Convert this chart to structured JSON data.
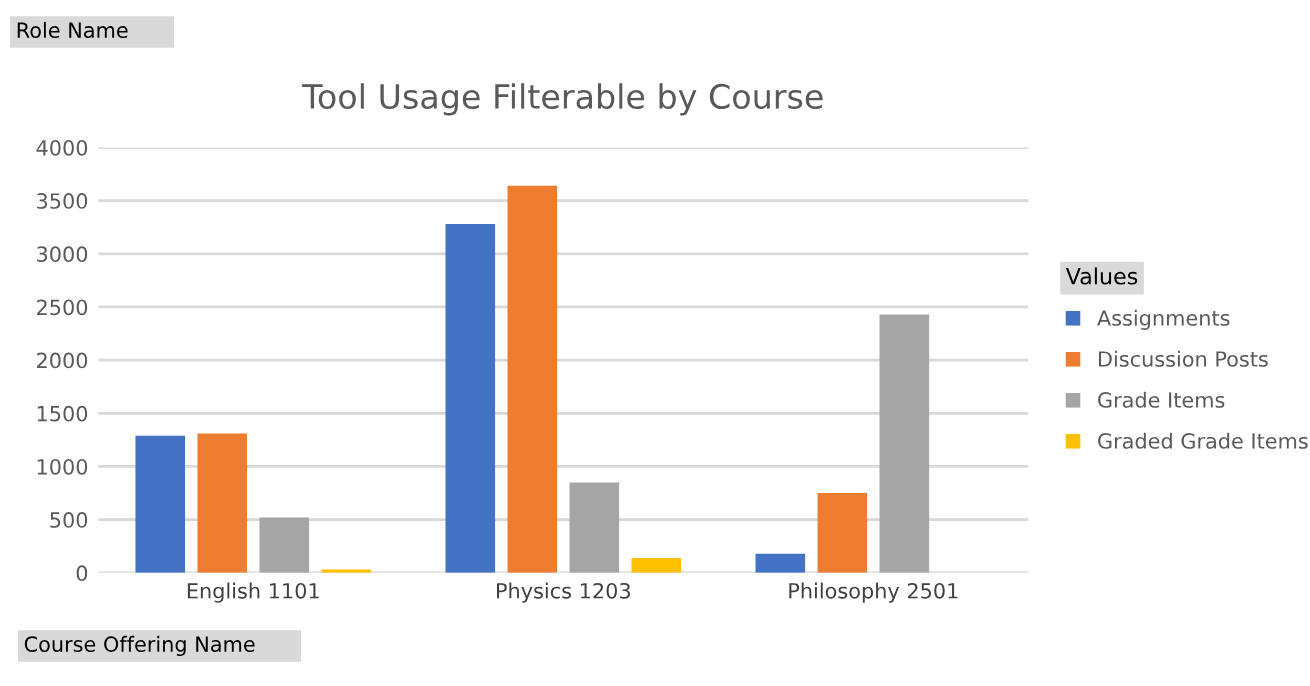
{
  "chart_data": {
    "type": "bar",
    "title": "Tool Usage Filterable by Course",
    "categories": [
      "English 1101",
      "Physics 1203",
      "Philosophy 2501"
    ],
    "series": [
      {
        "name": "Assignments",
        "color": "#4472c4",
        "values": [
          1290,
          3280,
          180
        ]
      },
      {
        "name": "Discussion Posts",
        "color": "#ed7d31",
        "values": [
          1310,
          3640,
          750
        ]
      },
      {
        "name": "Grade Items",
        "color": "#a5a5a5",
        "values": [
          520,
          850,
          2430
        ]
      },
      {
        "name": "Graded Grade Items",
        "color": "#ffc000",
        "values": [
          30,
          140,
          null
        ]
      }
    ],
    "ylim": [
      0,
      4000
    ],
    "yticks": [
      0,
      500,
      1000,
      1500,
      2000,
      2500,
      3000,
      3500,
      4000
    ],
    "grid": "y",
    "legend": "right",
    "legend_title": "Values",
    "annotations": [
      "Role Name",
      "Course Offering Name"
    ]
  }
}
